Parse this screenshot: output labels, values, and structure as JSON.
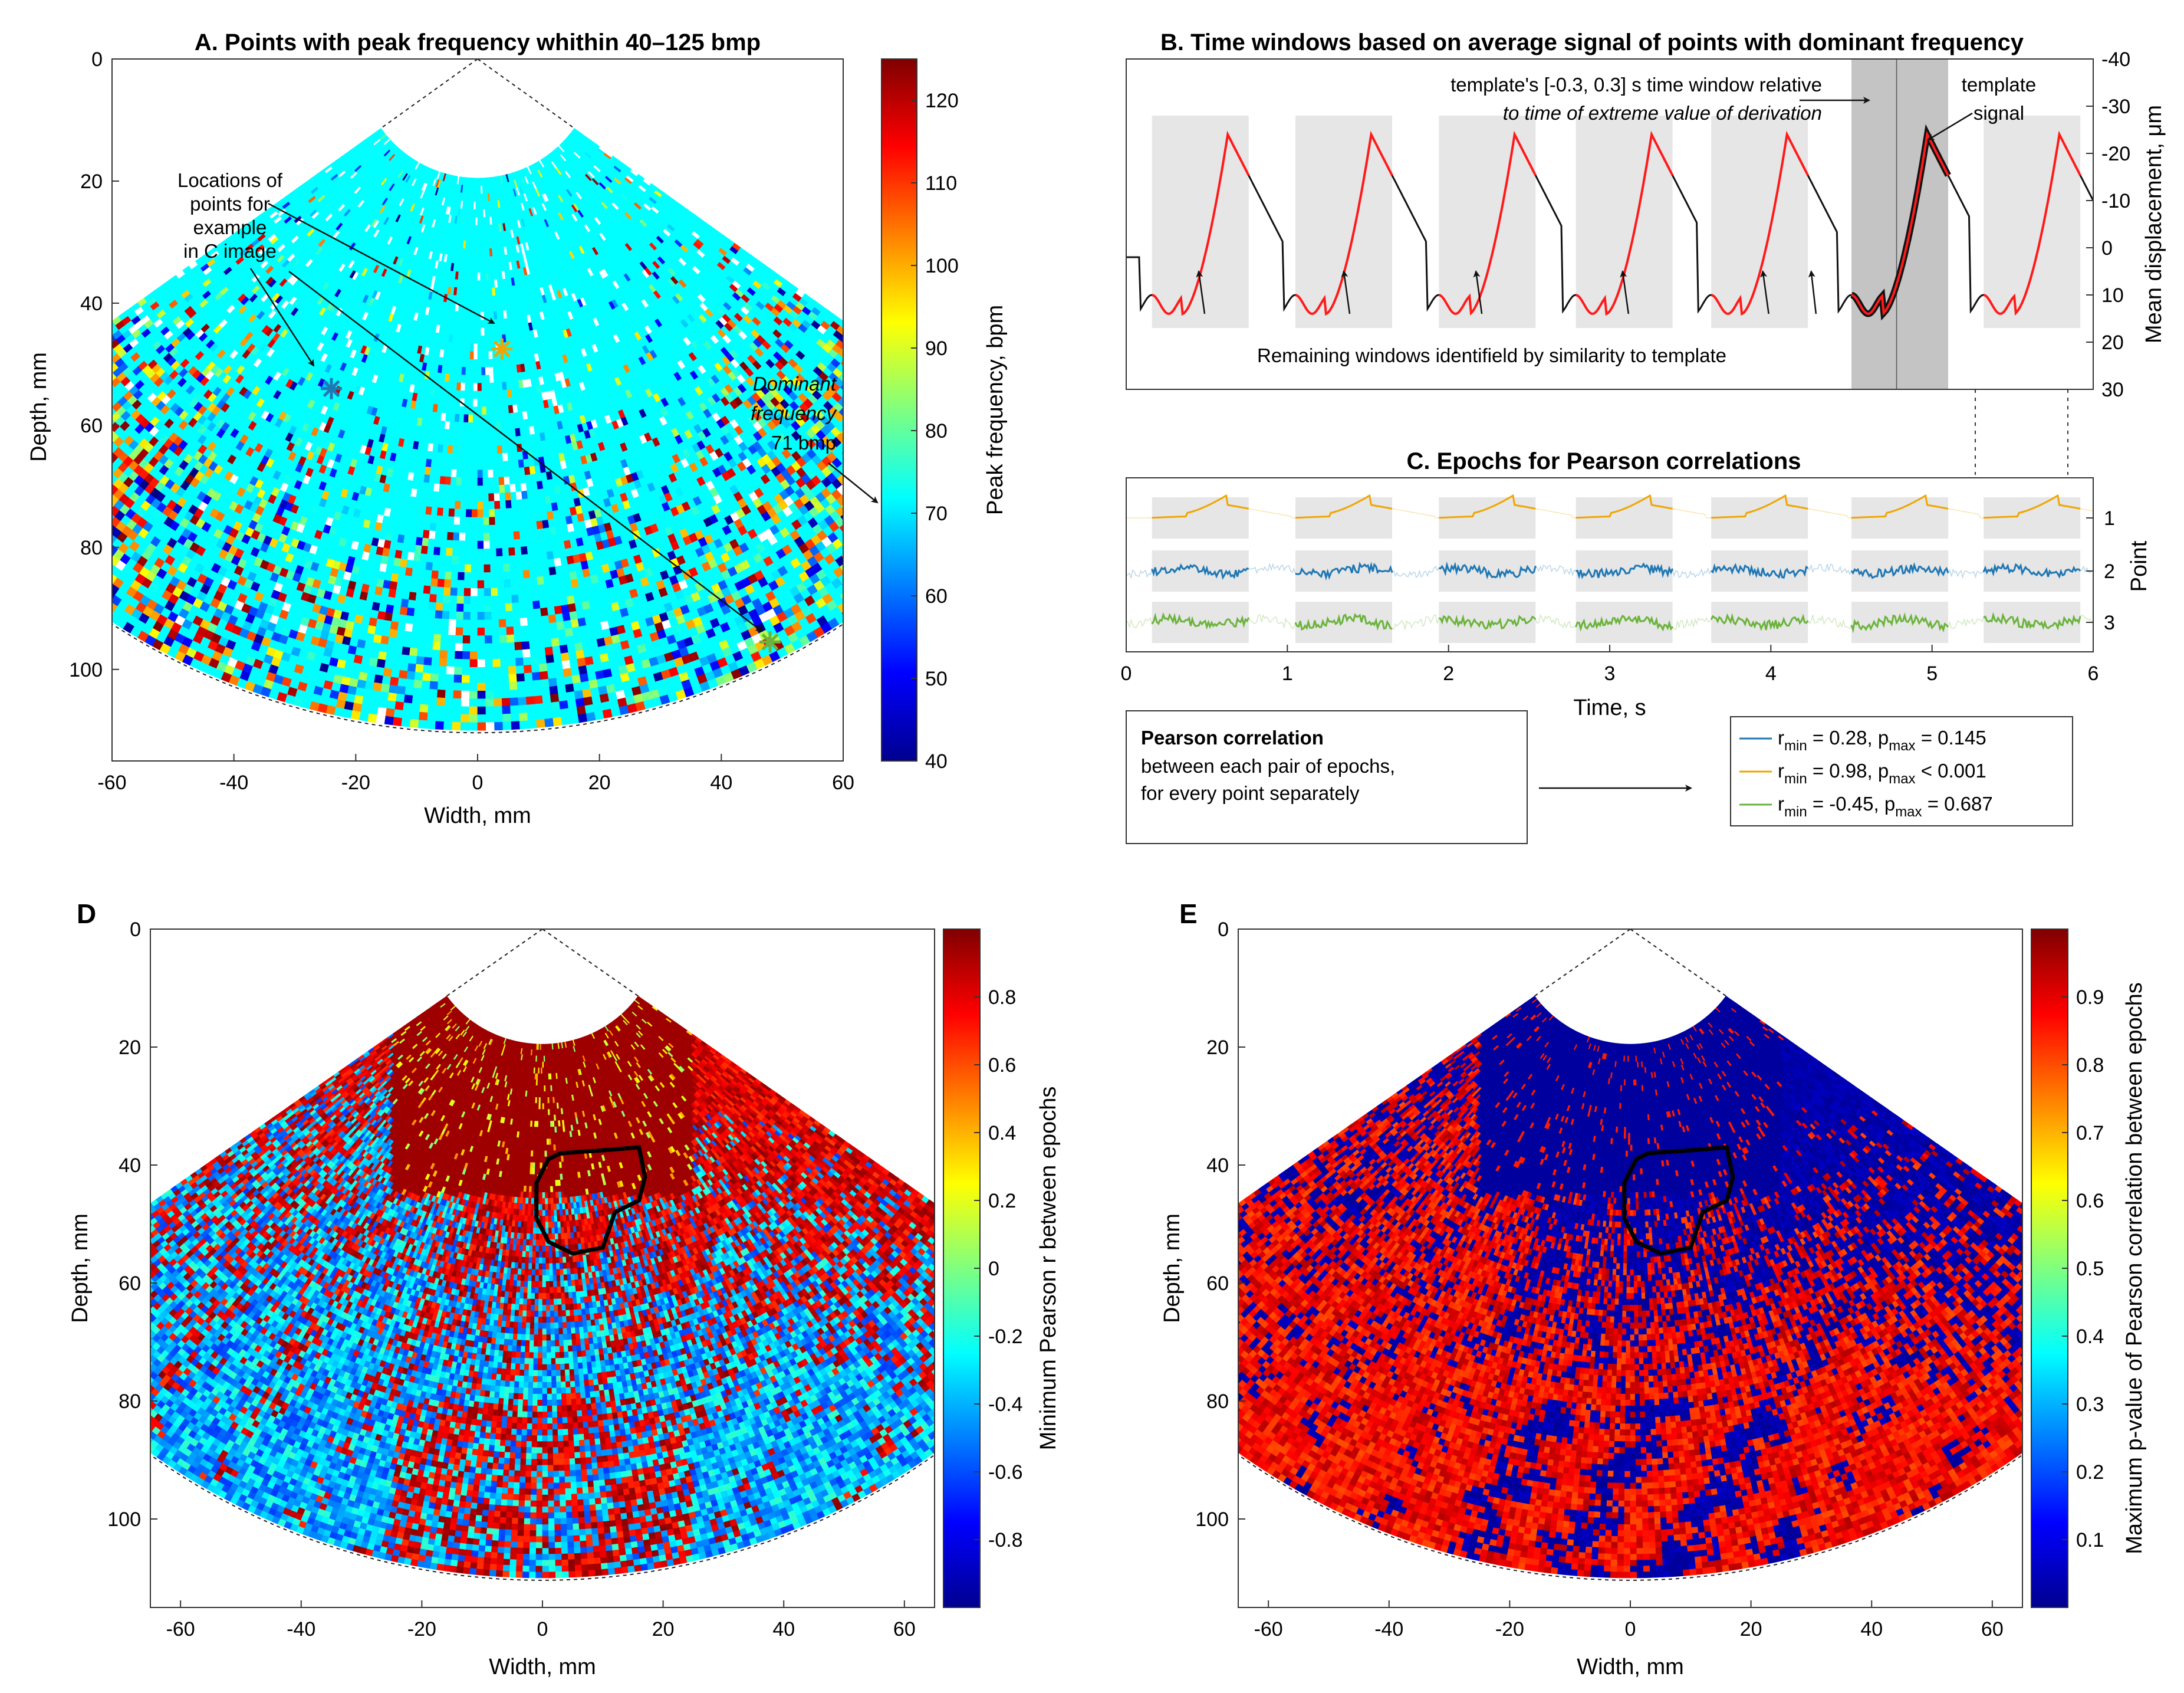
{
  "chart_data": [
    {
      "id": "A",
      "type": "heatmap",
      "title": "A. Points with peak frequency whithin 40–125 bmp",
      "xlabel": "Width, mm",
      "ylabel": "Depth, mm",
      "xlim": [
        -60,
        60
      ],
      "ylim": [
        0,
        115
      ],
      "xticks": [
        "-60",
        "-40",
        "-20",
        "0",
        "20",
        "40",
        "60"
      ],
      "yticks": [
        "0",
        "20",
        "40",
        "60",
        "80",
        "100"
      ],
      "colorbar": {
        "label": "Peak frequency, bpm",
        "range": [
          40,
          125
        ],
        "ticks": [
          "40",
          "50",
          "60",
          "70",
          "80",
          "90",
          "100",
          "110",
          "120"
        ]
      },
      "annotations": {
        "locations_note": [
          "Locations of",
          "points for",
          "example",
          "in C image"
        ],
        "dominant_note": [
          "Dominant",
          "frequency",
          "71 bmp"
        ]
      },
      "example_points": [
        {
          "point": 1,
          "width_mm": 4,
          "depth_mm": 47.5,
          "color": "#f0a500"
        },
        {
          "point": 2,
          "width_mm": -24,
          "depth_mm": 54,
          "color": "#1f77b4"
        },
        {
          "point": 3,
          "width_mm": 48,
          "depth_mm": 95.5,
          "color": "#6bb33c"
        }
      ],
      "dominant_value_bpm": 71
    },
    {
      "id": "B",
      "type": "line",
      "title": "B. Time windows based on average signal of points with dominant frequency",
      "xlim": [
        0,
        6
      ],
      "ylabel": "Mean displacement, μm",
      "yaxis_position": "right",
      "ylim": [
        -40,
        30
      ],
      "yticks": [
        "-40",
        "-30",
        "-20",
        "-10",
        "0",
        "10",
        "20",
        "30"
      ],
      "annotations": {
        "template_window_line1": "template's [-0.3, 0.3] s time window relative",
        "template_window_line2": "to time of extreme value of derivation",
        "template_signal": [
          "template",
          "signal"
        ],
        "remaining_windows": "Remaining windows identifield by similarity to template"
      },
      "windows_s": [
        [
          0.16,
          0.76
        ],
        [
          1.05,
          1.65
        ],
        [
          1.94,
          2.54
        ],
        [
          2.79,
          3.39
        ],
        [
          3.63,
          4.23
        ],
        [
          4.5,
          5.1
        ],
        [
          5.32,
          5.92
        ]
      ],
      "template_window_index": 5,
      "template_center_s": 4.78
    },
    {
      "id": "C",
      "type": "line",
      "title": "C. Epochs for Pearson correlations",
      "xlabel": "Time, s",
      "ylabel": "Point",
      "xlim": [
        0,
        6
      ],
      "xticks": [
        "0",
        "1",
        "2",
        "3",
        "4",
        "5",
        "6"
      ],
      "yticks": [
        "1",
        "2",
        "3"
      ],
      "series": [
        {
          "name": "Point 1",
          "color": "#f0a500"
        },
        {
          "name": "Point 2",
          "color": "#1f77b4"
        },
        {
          "name": "Point 3",
          "color": "#6bb33c"
        }
      ],
      "pearson_note": {
        "heading": "Pearson correlation",
        "line1": "between each pair of epochs,",
        "line2": "for every point separately"
      },
      "legend": [
        {
          "color": "#1f77b4",
          "r_min": "0.28",
          "p_max": "= 0.145"
        },
        {
          "color": "#f0a500",
          "r_min": "0.98",
          "p_max": "< 0.001"
        },
        {
          "color": "#6bb33c",
          "r_min": "-0.45",
          "p_max": "= 0.687"
        }
      ]
    },
    {
      "id": "D",
      "type": "heatmap",
      "panel_letter": "D",
      "xlabel": "Width, mm",
      "ylabel": "Depth, mm",
      "xlim": [
        -65,
        65
      ],
      "ylim": [
        0,
        115
      ],
      "xticks": [
        "-60",
        "-40",
        "-20",
        "0",
        "20",
        "40",
        "60"
      ],
      "yticks": [
        "0",
        "20",
        "40",
        "60",
        "80",
        "100"
      ],
      "colorbar": {
        "label": "Minimum Pearson r between epochs",
        "range": [
          -1,
          1
        ],
        "ticks": [
          "-0.8",
          "-0.6",
          "-0.4",
          "-0.2",
          "0",
          "0.2",
          "0.4",
          "0.6",
          "0.8"
        ]
      }
    },
    {
      "id": "E",
      "type": "heatmap",
      "panel_letter": "E",
      "xlabel": "Width, mm",
      "ylabel": "Depth, mm",
      "xlim": [
        -65,
        65
      ],
      "ylim": [
        0,
        115
      ],
      "xticks": [
        "-60",
        "-40",
        "-20",
        "0",
        "20",
        "40",
        "60"
      ],
      "yticks": [
        "0",
        "20",
        "40",
        "60",
        "80",
        "100"
      ],
      "colorbar": {
        "label": "Maximum p-value of Pearson correlation between epochs",
        "range": [
          0,
          1
        ],
        "ticks": [
          "0.1",
          "0.2",
          "0.3",
          "0.4",
          "0.5",
          "0.6",
          "0.7",
          "0.8",
          "0.9"
        ]
      }
    }
  ]
}
